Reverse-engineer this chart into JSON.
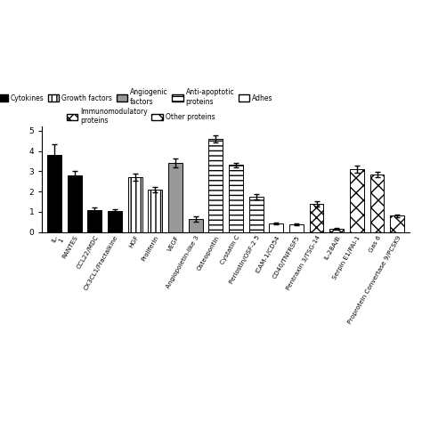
{
  "categories": [
    "IL-\n1",
    "RANTES",
    "CCL22/MDC",
    "CX3CL1/Fractalkine",
    "HGF",
    "Proliferin",
    "VEGF",
    "Angiopoietin-like 3",
    "Osteopontin",
    "Cystatin C",
    "Periostin/OSF-2 5",
    "ICAM-1/CD54",
    "CD40/TNFRSF5",
    "Pentraxin 3/TSG-14",
    "IL-28A/B",
    "Serpin E1/PAI-1",
    "Gas 6",
    "Proprotein Convertase 9/PCSK9"
  ],
  "values": [
    3.8,
    2.8,
    1.1,
    1.05,
    2.7,
    2.1,
    3.4,
    0.65,
    4.6,
    3.3,
    1.75,
    0.42,
    0.38,
    1.4,
    0.15,
    3.1,
    2.85,
    0.8
  ],
  "errors": [
    0.55,
    0.22,
    0.1,
    0.09,
    0.18,
    0.14,
    0.22,
    0.12,
    0.18,
    0.12,
    0.14,
    0.06,
    0.06,
    0.12,
    0.04,
    0.18,
    0.14,
    0.08
  ],
  "bar_styles": [
    {
      "facecolor": "black",
      "hatch": "",
      "edgecolor": "black"
    },
    {
      "facecolor": "black",
      "hatch": "",
      "edgecolor": "black"
    },
    {
      "facecolor": "black",
      "hatch": "",
      "edgecolor": "black"
    },
    {
      "facecolor": "black",
      "hatch": "",
      "edgecolor": "black"
    },
    {
      "facecolor": "white",
      "hatch": "|||",
      "edgecolor": "black"
    },
    {
      "facecolor": "white",
      "hatch": "|||",
      "edgecolor": "black"
    },
    {
      "facecolor": "#999999",
      "hatch": "",
      "edgecolor": "black"
    },
    {
      "facecolor": "#999999",
      "hatch": "",
      "edgecolor": "black"
    },
    {
      "facecolor": "white",
      "hatch": "---",
      "edgecolor": "black"
    },
    {
      "facecolor": "white",
      "hatch": "---",
      "edgecolor": "black"
    },
    {
      "facecolor": "white",
      "hatch": "---",
      "edgecolor": "black"
    },
    {
      "facecolor": "white",
      "hatch": "",
      "edgecolor": "black"
    },
    {
      "facecolor": "white",
      "hatch": "",
      "edgecolor": "black"
    },
    {
      "facecolor": "white",
      "hatch": "xxx",
      "edgecolor": "black"
    },
    {
      "facecolor": "white",
      "hatch": "xxx",
      "edgecolor": "black"
    },
    {
      "facecolor": "white",
      "hatch": "xx",
      "edgecolor": "black"
    },
    {
      "facecolor": "white",
      "hatch": "xx",
      "edgecolor": "black"
    },
    {
      "facecolor": "white",
      "hatch": "xx",
      "edgecolor": "black"
    }
  ],
  "ylim": [
    0,
    5.2
  ],
  "bar_width": 0.7,
  "background_color": "#ffffff",
  "legend_rows": [
    [
      {
        "label": "Cytokines",
        "facecolor": "black",
        "hatch": "",
        "edgecolor": "black"
      },
      {
        "label": "Growth factors",
        "facecolor": "white",
        "hatch": "|||",
        "edgecolor": "black"
      },
      {
        "label": "Angiogenic\nfactors",
        "facecolor": "#999999",
        "hatch": "",
        "edgecolor": "black"
      },
      {
        "label": "Anti-apoptotic\nproteins",
        "facecolor": "white",
        "hatch": "---",
        "edgecolor": "black"
      },
      {
        "label": "Adhes",
        "facecolor": "white",
        "hatch": "",
        "edgecolor": "black"
      }
    ],
    [
      {
        "label": "Immunomodulatory\nproteins",
        "facecolor": "white",
        "hatch": "xxx",
        "edgecolor": "black"
      },
      {
        "label": "Other proteins",
        "facecolor": "white",
        "hatch": "xx",
        "edgecolor": "black"
      }
    ]
  ]
}
